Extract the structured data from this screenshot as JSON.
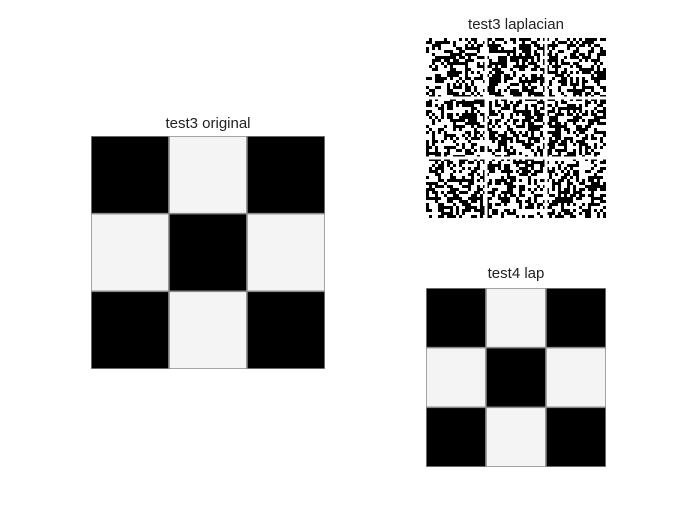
{
  "figure": {
    "panels": [
      {
        "title": "test3 original",
        "pattern": "checkerboard-3x3",
        "cells": [
          [
            0,
            1,
            0
          ],
          [
            1,
            0,
            1
          ],
          [
            0,
            1,
            0
          ]
        ]
      },
      {
        "title": "test3 laplacian",
        "pattern": "noise-3x3"
      },
      {
        "title": "test4 lap",
        "pattern": "checkerboard-3x3",
        "cells": [
          [
            0,
            1,
            0
          ],
          [
            1,
            0,
            1
          ],
          [
            0,
            1,
            0
          ]
        ]
      }
    ],
    "colors": {
      "dark": "#000000",
      "light": "#f4f4f4",
      "border": "#8a8a8a"
    }
  }
}
